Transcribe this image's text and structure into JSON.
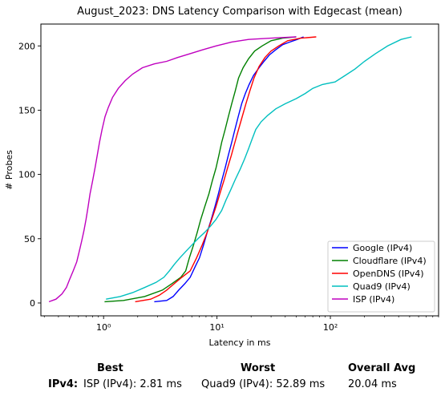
{
  "chart_data": {
    "type": "line",
    "title": "August_2023: DNS Latency Comparison with Edgecast (mean)",
    "xlabel": "Latency in ms",
    "ylabel": "# Probes",
    "xscale": "log",
    "xlim": [
      0.28,
      900
    ],
    "ylim": [
      -10,
      217
    ],
    "xticks": [
      1,
      10,
      100
    ],
    "xtick_labels": [
      "10⁰",
      "10¹",
      "10²"
    ],
    "yticks": [
      0,
      50,
      100,
      150,
      200
    ],
    "ytick_labels": [
      "0",
      "50",
      "100",
      "150",
      "200"
    ],
    "grid": false,
    "legend_position": "lower-right",
    "series": [
      {
        "name": "Google (IPv4)",
        "color": "#0000ff",
        "points": [
          [
            2.8,
            1
          ],
          [
            3.6,
            2
          ],
          [
            4.1,
            5
          ],
          [
            4.6,
            10
          ],
          [
            5.2,
            15
          ],
          [
            5.8,
            20
          ],
          [
            6.4,
            28
          ],
          [
            7.0,
            35
          ],
          [
            7.6,
            45
          ],
          [
            8.2,
            55
          ],
          [
            8.9,
            65
          ],
          [
            9.6,
            75
          ],
          [
            10.3,
            85
          ],
          [
            11.0,
            95
          ],
          [
            11.8,
            105
          ],
          [
            12.6,
            115
          ],
          [
            13.5,
            125
          ],
          [
            14.4,
            135
          ],
          [
            15.4,
            145
          ],
          [
            16.5,
            155
          ],
          [
            17.8,
            163
          ],
          [
            19.2,
            170
          ],
          [
            21.0,
            177
          ],
          [
            23.5,
            183
          ],
          [
            26.0,
            188
          ],
          [
            29.0,
            193
          ],
          [
            33.0,
            197
          ],
          [
            38.0,
            201
          ],
          [
            44.0,
            203
          ],
          [
            51.0,
            205
          ],
          [
            58.0,
            207
          ]
        ]
      },
      {
        "name": "Cloudflare (IPv4)",
        "color": "#008000",
        "points": [
          [
            1.02,
            1
          ],
          [
            1.5,
            2
          ],
          [
            2.3,
            5
          ],
          [
            3.3,
            10
          ],
          [
            4.0,
            15
          ],
          [
            4.8,
            20
          ],
          [
            5.3,
            25
          ],
          [
            5.7,
            35
          ],
          [
            6.2,
            45
          ],
          [
            6.7,
            55
          ],
          [
            7.2,
            65
          ],
          [
            7.8,
            75
          ],
          [
            8.5,
            85
          ],
          [
            9.1,
            95
          ],
          [
            9.8,
            105
          ],
          [
            10.4,
            115
          ],
          [
            11.0,
            125
          ],
          [
            11.8,
            135
          ],
          [
            12.6,
            145
          ],
          [
            13.5,
            155
          ],
          [
            14.5,
            165
          ],
          [
            15.5,
            175
          ],
          [
            17.0,
            183
          ],
          [
            19.0,
            190
          ],
          [
            21.5,
            196
          ],
          [
            25.0,
            200
          ],
          [
            30.0,
            204
          ],
          [
            38.0,
            206
          ],
          [
            50.0,
            207
          ]
        ]
      },
      {
        "name": "OpenDNS (IPv4)",
        "color": "#ff0000",
        "points": [
          [
            1.9,
            1
          ],
          [
            2.6,
            3
          ],
          [
            3.1,
            6
          ],
          [
            3.6,
            10
          ],
          [
            4.2,
            15
          ],
          [
            4.9,
            20
          ],
          [
            5.8,
            25
          ],
          [
            6.6,
            35
          ],
          [
            7.4,
            45
          ],
          [
            8.2,
            55
          ],
          [
            9.0,
            65
          ],
          [
            9.8,
            75
          ],
          [
            10.6,
            85
          ],
          [
            11.5,
            95
          ],
          [
            12.4,
            105
          ],
          [
            13.4,
            115
          ],
          [
            14.4,
            125
          ],
          [
            15.5,
            135
          ],
          [
            16.7,
            145
          ],
          [
            18.0,
            155
          ],
          [
            19.5,
            165
          ],
          [
            21.2,
            175
          ],
          [
            23.5,
            184
          ],
          [
            26.5,
            191
          ],
          [
            30.0,
            196
          ],
          [
            35.0,
            200
          ],
          [
            42.0,
            204
          ],
          [
            55.0,
            206
          ],
          [
            75.0,
            207
          ]
        ]
      },
      {
        "name": "Quad9 (IPv4)",
        "color": "#00bfbf",
        "points": [
          [
            1.05,
            3
          ],
          [
            1.4,
            5
          ],
          [
            1.8,
            8
          ],
          [
            2.3,
            12
          ],
          [
            2.9,
            16
          ],
          [
            3.4,
            20
          ],
          [
            3.8,
            25
          ],
          [
            4.2,
            30
          ],
          [
            4.7,
            35
          ],
          [
            5.3,
            40
          ],
          [
            6.0,
            45
          ],
          [
            6.8,
            50
          ],
          [
            7.8,
            55
          ],
          [
            8.8,
            60
          ],
          [
            9.8,
            65
          ],
          [
            11.0,
            72
          ],
          [
            12.0,
            80
          ],
          [
            13.2,
            88
          ],
          [
            14.5,
            96
          ],
          [
            16.0,
            104
          ],
          [
            17.5,
            112
          ],
          [
            19.0,
            120
          ],
          [
            20.5,
            128
          ],
          [
            22.0,
            135
          ],
          [
            24.5,
            141
          ],
          [
            28.0,
            146
          ],
          [
            33.0,
            151
          ],
          [
            40.0,
            155
          ],
          [
            50.0,
            159
          ],
          [
            60.0,
            163
          ],
          [
            70.0,
            167
          ],
          [
            85.0,
            170
          ],
          [
            110.0,
            172
          ],
          [
            135.0,
            177
          ],
          [
            165.0,
            182
          ],
          [
            200.0,
            188
          ],
          [
            250.0,
            194
          ],
          [
            320.0,
            200
          ],
          [
            420.0,
            205
          ],
          [
            520.0,
            207
          ]
        ]
      },
      {
        "name": "ISP (IPv4)",
        "color": "#bf00bf",
        "points": [
          [
            0.33,
            1
          ],
          [
            0.38,
            3
          ],
          [
            0.43,
            7
          ],
          [
            0.47,
            12
          ],
          [
            0.5,
            18
          ],
          [
            0.54,
            25
          ],
          [
            0.58,
            32
          ],
          [
            0.61,
            40
          ],
          [
            0.64,
            48
          ],
          [
            0.67,
            56
          ],
          [
            0.7,
            65
          ],
          [
            0.73,
            75
          ],
          [
            0.76,
            85
          ],
          [
            0.8,
            95
          ],
          [
            0.84,
            105
          ],
          [
            0.88,
            115
          ],
          [
            0.92,
            125
          ],
          [
            0.97,
            135
          ],
          [
            1.03,
            145
          ],
          [
            1.1,
            152
          ],
          [
            1.2,
            160
          ],
          [
            1.35,
            167
          ],
          [
            1.55,
            173
          ],
          [
            1.8,
            178
          ],
          [
            2.2,
            183
          ],
          [
            2.8,
            186
          ],
          [
            3.6,
            188
          ],
          [
            4.5,
            191
          ],
          [
            5.8,
            194
          ],
          [
            7.5,
            197
          ],
          [
            9.8,
            200
          ],
          [
            13.5,
            203
          ],
          [
            19.0,
            205
          ],
          [
            30.0,
            206
          ],
          [
            50.0,
            207
          ]
        ]
      }
    ]
  },
  "summary": {
    "best_header": "Best",
    "worst_header": "Worst",
    "avg_header": "Overall Avg",
    "row_label": "IPv4:",
    "best_value": "ISP (IPv4): 2.81 ms",
    "worst_value": "Quad9 (IPv4): 52.89 ms",
    "avg_value": "20.04 ms"
  }
}
